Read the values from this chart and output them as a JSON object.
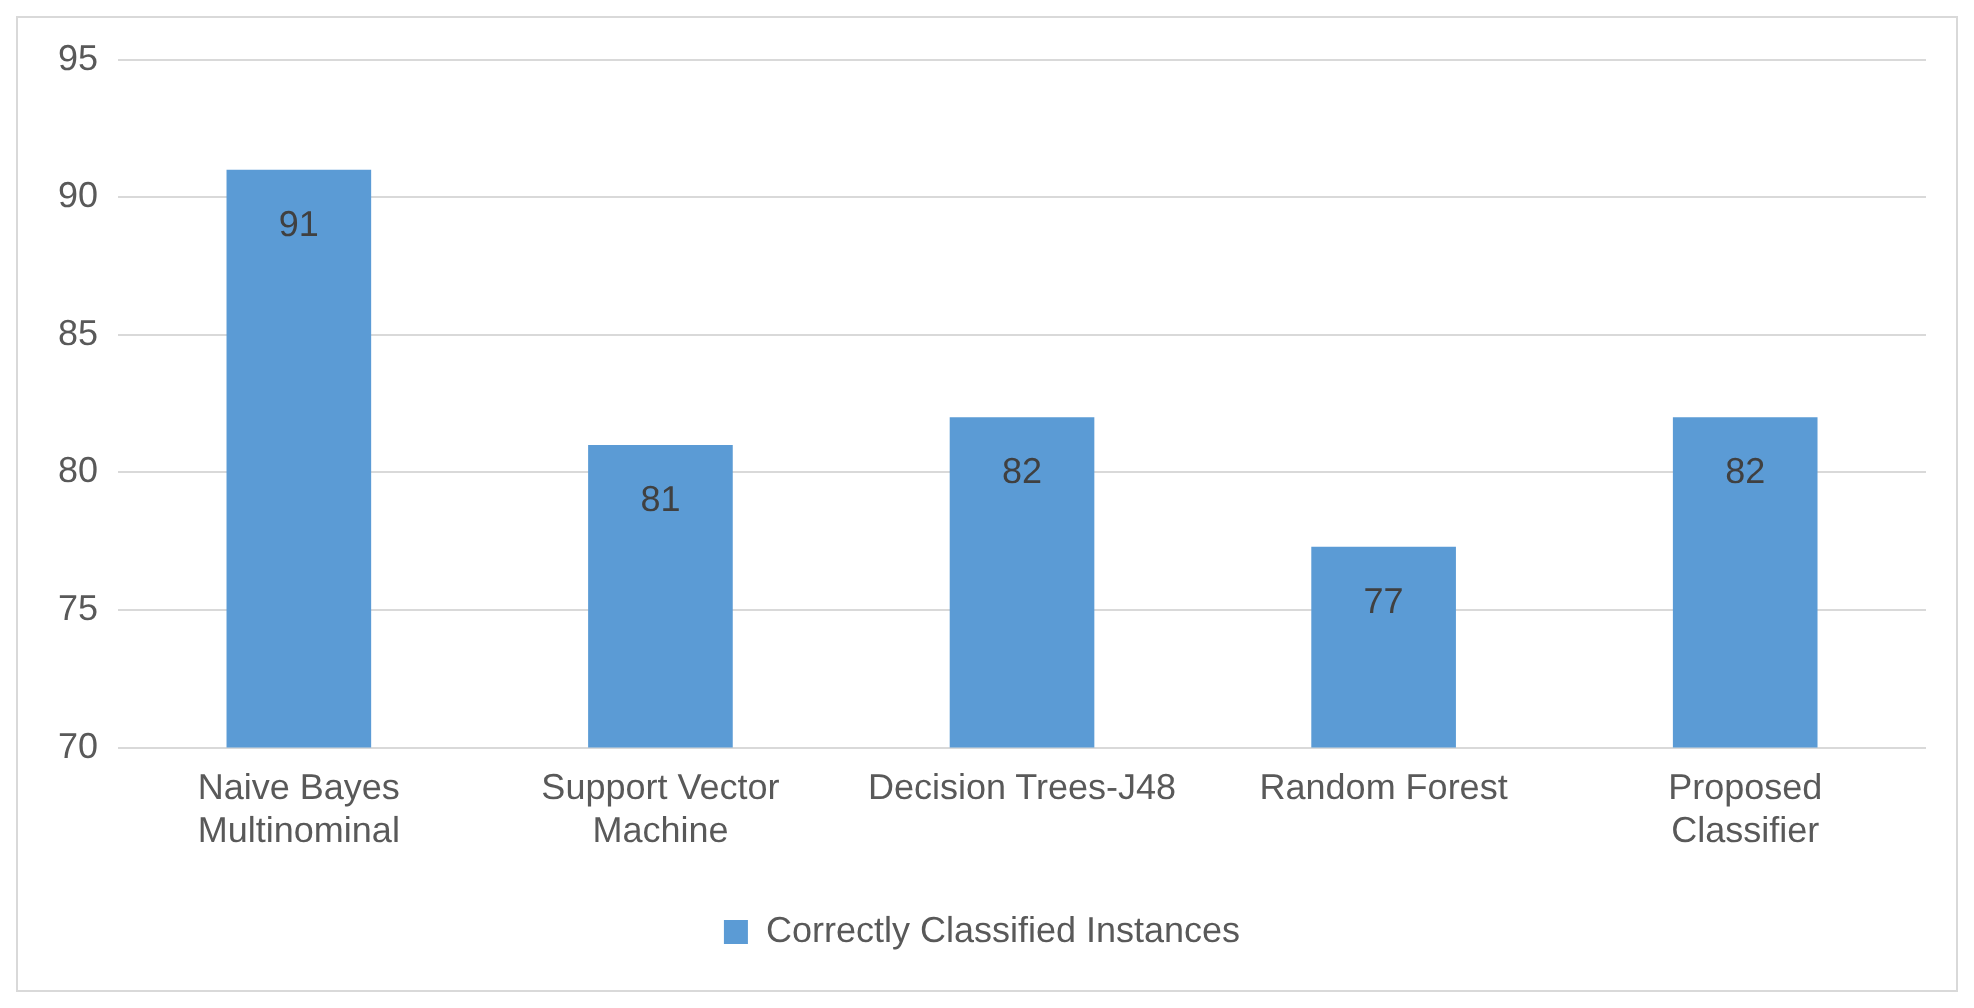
{
  "chart_data": {
    "type": "bar",
    "categories": [
      "Naive Bayes Multinominal",
      "Support Vector Machine",
      "Decision Trees-J48",
      "Random Forest",
      "Proposed Classifier"
    ],
    "series": [
      {
        "name": "Correctly Classified Instances",
        "color": "#5b9bd5",
        "values": [
          91,
          81,
          82,
          77.3,
          82
        ],
        "value_labels": [
          "91",
          "81",
          "82",
          "77",
          "82"
        ]
      }
    ],
    "ylim": [
      70,
      95
    ],
    "yticks": [
      70,
      75,
      80,
      85,
      90,
      95
    ],
    "grid": "y",
    "legend": "bottom"
  }
}
